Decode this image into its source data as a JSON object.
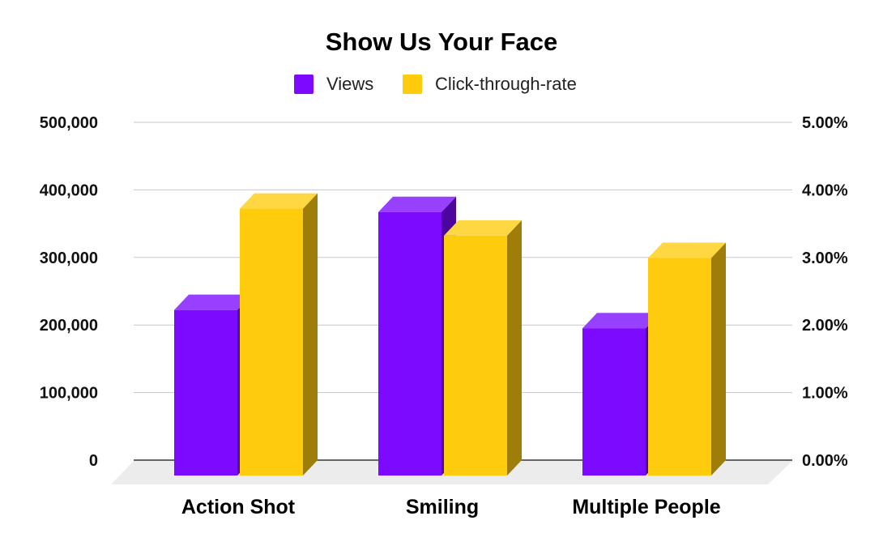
{
  "chart_data": {
    "type": "bar",
    "title": "Show Us Your Face",
    "categories": [
      "Action Shot",
      "Smiling",
      "Multiple People"
    ],
    "series": [
      {
        "name": "Views",
        "axis": "left",
        "color": "#7b0aff",
        "values": [
          245000,
          390000,
          218000
        ]
      },
      {
        "name": "Click-through-rate",
        "axis": "right",
        "color": "#ffcc0d",
        "values": [
          3.95,
          3.55,
          3.22
        ]
      }
    ],
    "y_left": {
      "ticks": [
        "0",
        "100,000",
        "200,000",
        "300,000",
        "400,000",
        "500,000"
      ],
      "range": [
        0,
        500000
      ]
    },
    "y_right": {
      "ticks": [
        "0.00%",
        "1.00%",
        "2.00%",
        "3.00%",
        "4.00%",
        "5.00%"
      ],
      "range": [
        0,
        5
      ]
    },
    "grid": true,
    "legend_position": "top",
    "style": "3d-bars"
  }
}
